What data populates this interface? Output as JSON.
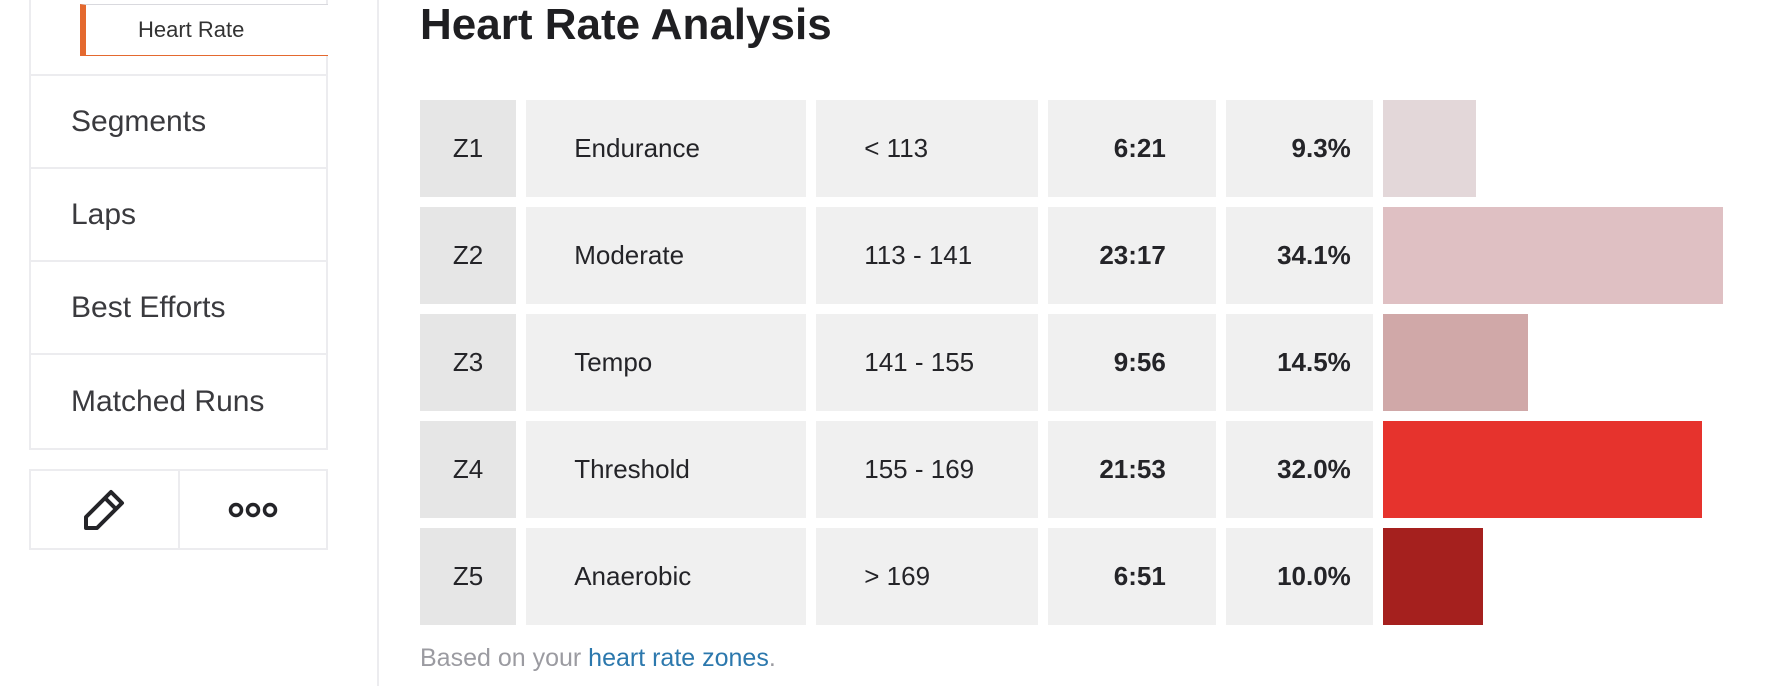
{
  "sidebar": {
    "active_sub_item": "Heart Rate",
    "items": [
      {
        "label": "Segments"
      },
      {
        "label": "Laps"
      },
      {
        "label": "Best Efforts"
      },
      {
        "label": "Matched Runs"
      }
    ],
    "actions": [
      {
        "icon": "pencil-icon"
      },
      {
        "icon": "more-icon"
      }
    ]
  },
  "main": {
    "title": "Heart Rate Analysis",
    "zones": [
      {
        "zone": "Z1",
        "name": "Endurance",
        "range": "< 113",
        "time": "6:21",
        "percent": "9.3%",
        "share": 0.093,
        "color": "#e3d7d9"
      },
      {
        "zone": "Z2",
        "name": "Moderate",
        "range": "113 - 141",
        "time": "23:17",
        "percent": "34.1%",
        "share": 0.341,
        "color": "#dfc0c3"
      },
      {
        "zone": "Z3",
        "name": "Tempo",
        "range": "141 - 155",
        "time": "9:56",
        "percent": "14.5%",
        "share": 0.145,
        "color": "#d0a8a8"
      },
      {
        "zone": "Z4",
        "name": "Threshold",
        "range": "155 - 169",
        "time": "21:53",
        "percent": "32.0%",
        "share": 0.32,
        "color": "#e6332d"
      },
      {
        "zone": "Z5",
        "name": "Anaerobic",
        "range": "> 169",
        "time": "6:51",
        "percent": "10.0%",
        "share": 0.1,
        "color": "#a5201e"
      }
    ],
    "footnote": {
      "prefix": "Based on your ",
      "link_label": "heart rate zones",
      "suffix": "."
    }
  }
}
